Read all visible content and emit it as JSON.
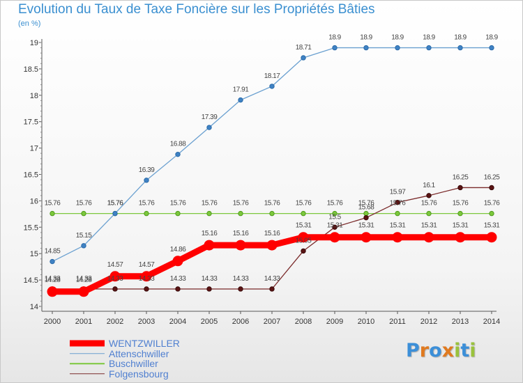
{
  "header": {
    "title": "Evolution du Taux de Taxe Foncière sur les Propriétés Bâties",
    "subtitle": "(en %)"
  },
  "logo": {
    "text": "Proxiti",
    "letters": [
      "P",
      "r",
      "o",
      "x",
      "i",
      "t",
      "i"
    ],
    "colors": [
      "#3c8fd8",
      "#e07a20",
      "#3c8fd8",
      "#e07a20",
      "#9ac23c",
      "#3c8fd8",
      "#9ac23c"
    ]
  },
  "chart_data": {
    "type": "line",
    "title": "Evolution du Taux de Taxe Foncière sur les Propriétés Bâties",
    "ylabel": "(en %)",
    "xlabel": "",
    "categories": [
      "2000",
      "2001",
      "2002",
      "2003",
      "2004",
      "2005",
      "2006",
      "2007",
      "2008",
      "2009",
      "2010",
      "2011",
      "2012",
      "2013",
      "2014"
    ],
    "ylim": [
      14,
      19
    ],
    "yticks": [
      "14",
      "14.5",
      "15",
      "15.5",
      "16",
      "16.5",
      "17",
      "17.5",
      "18",
      "18.5",
      "19"
    ],
    "legend_position": "bottom-left",
    "series": [
      {
        "name": "WENTZWILLER",
        "color": "#ff0000",
        "labels": [
          "14.28",
          "14.28",
          "14.57",
          "14.57",
          "14.86",
          "15.16",
          "15.16",
          "15.16",
          "15.31",
          "15.31",
          "15.31",
          "15.31",
          "15.31",
          "15.31",
          "15.31"
        ],
        "values": [
          14.28,
          14.28,
          14.57,
          14.57,
          14.86,
          15.16,
          15.16,
          15.16,
          15.31,
          15.31,
          15.31,
          15.31,
          15.31,
          15.31,
          15.31
        ]
      },
      {
        "name": "Attenschwiller",
        "color": "#6aa0d0",
        "labels": [
          "14.85",
          "15.15",
          "15.76",
          "16.39",
          "16.88",
          "17.39",
          "17.91",
          "18.17",
          "18.71",
          "18.9",
          "18.9",
          "18.9",
          "18.9",
          "18.9",
          "18.9"
        ],
        "values": [
          14.85,
          15.15,
          15.76,
          16.39,
          16.88,
          17.39,
          17.91,
          18.17,
          18.71,
          18.9,
          18.9,
          18.9,
          18.9,
          18.9,
          18.9
        ]
      },
      {
        "name": "Buschwiller",
        "color": "#7cc83c",
        "labels": [
          "15.76",
          "15.76",
          "15.76",
          "15.76",
          "15.76",
          "15.76",
          "15.76",
          "15.76",
          "15.76",
          "15.76",
          "15.76",
          "15.76",
          "15.76",
          "15.76",
          "15.76"
        ],
        "values": [
          15.76,
          15.76,
          15.76,
          15.76,
          15.76,
          15.76,
          15.76,
          15.76,
          15.76,
          15.76,
          15.76,
          15.76,
          15.76,
          15.76,
          15.76
        ]
      },
      {
        "name": "Folgensbourg",
        "color": "#7a2a2a",
        "labels": [
          "14.33",
          "14.33",
          "14.33",
          "14.33",
          "14.33",
          "14.33",
          "14.33",
          "14.33",
          "15.05",
          "15.5",
          "15.68",
          "15.97",
          "16.1",
          "16.25",
          "16.25"
        ],
        "values": [
          14.33,
          14.33,
          14.33,
          14.33,
          14.33,
          14.33,
          14.33,
          14.33,
          15.05,
          15.5,
          15.68,
          15.97,
          16.1,
          16.25,
          16.25
        ]
      }
    ]
  }
}
